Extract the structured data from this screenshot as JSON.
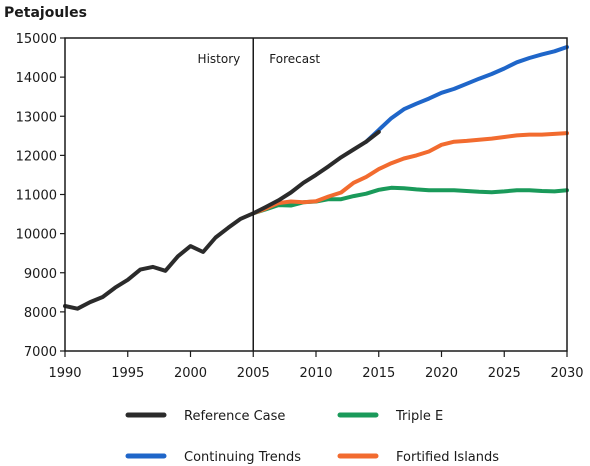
{
  "chart_data": {
    "type": "line",
    "ylabel": "Petajoules",
    "xlabel": "",
    "xlim": [
      1990,
      2030
    ],
    "ylim": [
      7000,
      15000
    ],
    "xticks": [
      1990,
      1995,
      2000,
      2005,
      2010,
      2015,
      2020,
      2025,
      2030
    ],
    "yticks": [
      7000,
      8000,
      9000,
      10000,
      11000,
      12000,
      13000,
      14000,
      15000
    ],
    "grid": false,
    "legend_position": "bottom",
    "annotations": [
      {
        "text": "History",
        "x": 2005,
        "side": "left"
      },
      {
        "text": "Forecast",
        "x": 2005,
        "side": "right"
      }
    ],
    "divider_x": 2005,
    "series": [
      {
        "name": "Reference Case",
        "color": "#2b2b2b",
        "x": [
          1990,
          1991,
          1992,
          1993,
          1994,
          1995,
          1996,
          1997,
          1998,
          1999,
          2000,
          2001,
          2002,
          2003,
          2004,
          2005,
          2006,
          2007,
          2008,
          2009,
          2010,
          2011,
          2012,
          2013,
          2014,
          2015
        ],
        "values": [
          8150,
          8080,
          8250,
          8380,
          8620,
          8820,
          9080,
          9150,
          9050,
          9420,
          9680,
          9530,
          9900,
          10150,
          10380,
          10520,
          10680,
          10850,
          11050,
          11300,
          11500,
          11720,
          11950,
          12150,
          12350,
          12600
        ]
      },
      {
        "name": "Triple E",
        "color": "#1a9a5a",
        "x": [
          2005,
          2006,
          2007,
          2008,
          2009,
          2010,
          2011,
          2012,
          2013,
          2014,
          2015,
          2016,
          2017,
          2018,
          2019,
          2020,
          2021,
          2022,
          2023,
          2024,
          2025,
          2026,
          2027,
          2028,
          2029,
          2030
        ],
        "values": [
          10520,
          10620,
          10730,
          10720,
          10800,
          10820,
          10880,
          10880,
          10960,
          11020,
          11120,
          11170,
          11160,
          11130,
          11110,
          11110,
          11110,
          11090,
          11070,
          11060,
          11080,
          11110,
          11110,
          11090,
          11080,
          11110
        ]
      },
      {
        "name": "Continuing Trends",
        "color": "#1f66c9",
        "x": [
          2014,
          2015,
          2016,
          2017,
          2018,
          2019,
          2020,
          2021,
          2022,
          2023,
          2024,
          2025,
          2026,
          2027,
          2028,
          2029,
          2030
        ],
        "values": [
          12350,
          12650,
          12950,
          13180,
          13320,
          13450,
          13600,
          13700,
          13830,
          13960,
          14080,
          14220,
          14380,
          14490,
          14580,
          14660,
          14770
        ]
      },
      {
        "name": "Fortified Islands",
        "color": "#f26b2f",
        "x": [
          2005,
          2006,
          2007,
          2008,
          2009,
          2010,
          2011,
          2012,
          2013,
          2014,
          2015,
          2016,
          2017,
          2018,
          2019,
          2020,
          2021,
          2022,
          2023,
          2024,
          2025,
          2026,
          2027,
          2028,
          2029,
          2030
        ],
        "values": [
          10520,
          10640,
          10780,
          10820,
          10800,
          10830,
          10950,
          11050,
          11300,
          11450,
          11650,
          11800,
          11920,
          12000,
          12100,
          12270,
          12350,
          12370,
          12400,
          12430,
          12470,
          12510,
          12530,
          12530,
          12550,
          12570
        ]
      }
    ]
  }
}
